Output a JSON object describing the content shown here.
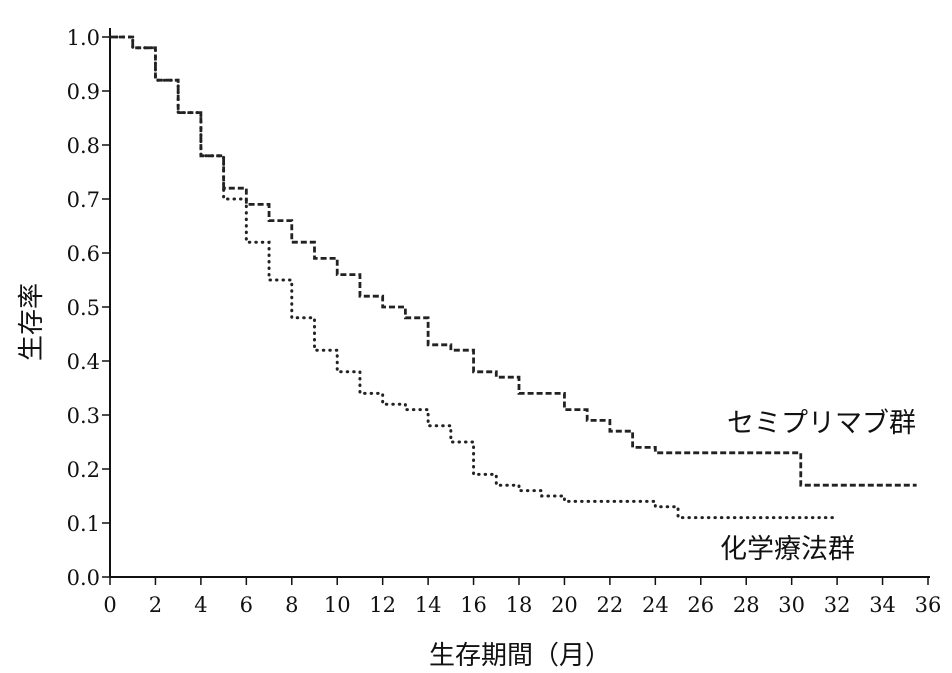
{
  "chart_data": {
    "type": "line",
    "title": "",
    "xlabel": "生存期間（月）",
    "ylabel": "生存率",
    "xlim": [
      0,
      36
    ],
    "ylim": [
      0,
      1.0
    ],
    "xticks": [
      0,
      2,
      4,
      6,
      8,
      10,
      12,
      14,
      16,
      18,
      20,
      22,
      24,
      26,
      28,
      30,
      32,
      34,
      36
    ],
    "yticks": [
      0.0,
      0.1,
      0.2,
      0.3,
      0.4,
      0.5,
      0.6,
      0.7,
      0.8,
      0.9,
      1.0
    ],
    "ytick_labels": [
      "0.0",
      "0.1",
      "0.2",
      "0.3",
      "0.4",
      "0.5",
      "0.6",
      "0.7",
      "0.8",
      "0.9",
      "1.0"
    ],
    "grid": false,
    "legend": "none",
    "series": [
      {
        "name": "セミプリマブ群",
        "style": "dashed",
        "color": "#222222",
        "points": [
          [
            0,
            1.0
          ],
          [
            1,
            0.98
          ],
          [
            2,
            0.92
          ],
          [
            3,
            0.86
          ],
          [
            4,
            0.78
          ],
          [
            5,
            0.72
          ],
          [
            6,
            0.69
          ],
          [
            7,
            0.66
          ],
          [
            8,
            0.62
          ],
          [
            9,
            0.59
          ],
          [
            10,
            0.56
          ],
          [
            11,
            0.52
          ],
          [
            12,
            0.5
          ],
          [
            13,
            0.48
          ],
          [
            14,
            0.43
          ],
          [
            15,
            0.42
          ],
          [
            16,
            0.38
          ],
          [
            17,
            0.37
          ],
          [
            18,
            0.34
          ],
          [
            19,
            0.34
          ],
          [
            20,
            0.31
          ],
          [
            21,
            0.29
          ],
          [
            22,
            0.27
          ],
          [
            23,
            0.24
          ],
          [
            24,
            0.23
          ],
          [
            28,
            0.23
          ],
          [
            30.4,
            0.23
          ],
          [
            30.4,
            0.17
          ],
          [
            35.5,
            0.17
          ]
        ]
      },
      {
        "name": "化学療法群",
        "style": "dotted",
        "color": "#222222",
        "points": [
          [
            0,
            1.0
          ],
          [
            1,
            0.98
          ],
          [
            2,
            0.92
          ],
          [
            3,
            0.86
          ],
          [
            4,
            0.78
          ],
          [
            5,
            0.7
          ],
          [
            6,
            0.62
          ],
          [
            7,
            0.55
          ],
          [
            8,
            0.48
          ],
          [
            9,
            0.42
          ],
          [
            10,
            0.38
          ],
          [
            11,
            0.34
          ],
          [
            12,
            0.32
          ],
          [
            13,
            0.31
          ],
          [
            14,
            0.28
          ],
          [
            15,
            0.25
          ],
          [
            16,
            0.19
          ],
          [
            17,
            0.17
          ],
          [
            18,
            0.16
          ],
          [
            19,
            0.15
          ],
          [
            20,
            0.14
          ],
          [
            22,
            0.14
          ],
          [
            24,
            0.13
          ],
          [
            25,
            0.11
          ],
          [
            26,
            0.11
          ],
          [
            28,
            0.11
          ],
          [
            30,
            0.11
          ],
          [
            32,
            0.11
          ]
        ]
      }
    ]
  }
}
